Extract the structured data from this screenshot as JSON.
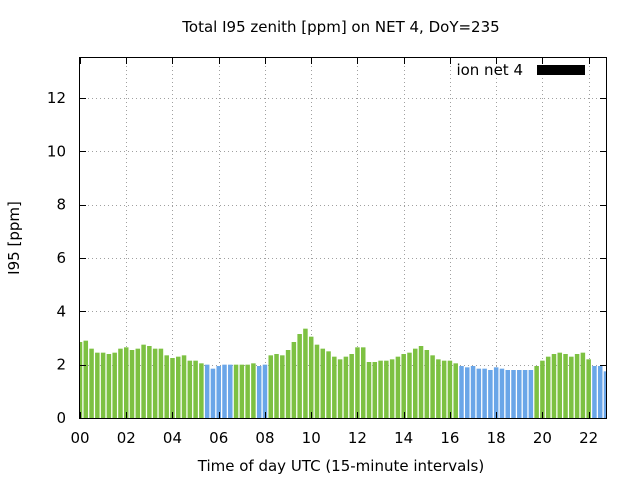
{
  "chart_data": {
    "type": "bar",
    "title": "Total I95 zenith [ppm] on NET 4, DoY=235",
    "xlabel": "Time of day UTC (15-minute intervals)",
    "ylabel": "I95 [ppm]",
    "xlim": [
      0,
      22.75
    ],
    "ylim": [
      0,
      13.5
    ],
    "x_ticks": [
      0,
      2,
      4,
      6,
      8,
      10,
      12,
      14,
      16,
      18,
      20,
      22
    ],
    "x_tick_labels": [
      "00",
      "02",
      "04",
      "06",
      "08",
      "10",
      "12",
      "14",
      "16",
      "18",
      "20",
      "22"
    ],
    "y_ticks": [
      0,
      2,
      4,
      6,
      8,
      10,
      12
    ],
    "y_tick_labels": [
      "0",
      "2",
      "4",
      "6",
      "8",
      "10",
      "12"
    ],
    "grid": true,
    "legend": {
      "label": "ion net 4",
      "color": "#000000",
      "placement": "top-right"
    },
    "colors": {
      "green": "#7dc142",
      "blue": "#6aa6e8"
    },
    "series": [
      {
        "values": [
          {
            "x": 0.0,
            "y": 2.85,
            "color": "green"
          },
          {
            "x": 0.25,
            "y": 2.9,
            "color": "green"
          },
          {
            "x": 0.5,
            "y": 2.6,
            "color": "green"
          },
          {
            "x": 0.75,
            "y": 2.45,
            "color": "green"
          },
          {
            "x": 1.0,
            "y": 2.45,
            "color": "green"
          },
          {
            "x": 1.25,
            "y": 2.4,
            "color": "green"
          },
          {
            "x": 1.5,
            "y": 2.45,
            "color": "green"
          },
          {
            "x": 1.75,
            "y": 2.6,
            "color": "green"
          },
          {
            "x": 2.0,
            "y": 2.65,
            "color": "green"
          },
          {
            "x": 2.25,
            "y": 2.55,
            "color": "green"
          },
          {
            "x": 2.5,
            "y": 2.6,
            "color": "green"
          },
          {
            "x": 2.75,
            "y": 2.75,
            "color": "green"
          },
          {
            "x": 3.0,
            "y": 2.7,
            "color": "green"
          },
          {
            "x": 3.25,
            "y": 2.6,
            "color": "green"
          },
          {
            "x": 3.5,
            "y": 2.6,
            "color": "green"
          },
          {
            "x": 3.75,
            "y": 2.35,
            "color": "green"
          },
          {
            "x": 4.0,
            "y": 2.25,
            "color": "green"
          },
          {
            "x": 4.25,
            "y": 2.3,
            "color": "green"
          },
          {
            "x": 4.5,
            "y": 2.35,
            "color": "green"
          },
          {
            "x": 4.75,
            "y": 2.15,
            "color": "green"
          },
          {
            "x": 5.0,
            "y": 2.15,
            "color": "green"
          },
          {
            "x": 5.25,
            "y": 2.05,
            "color": "green"
          },
          {
            "x": 5.5,
            "y": 2.0,
            "color": "blue"
          },
          {
            "x": 5.75,
            "y": 1.85,
            "color": "blue"
          },
          {
            "x": 6.0,
            "y": 1.95,
            "color": "blue"
          },
          {
            "x": 6.25,
            "y": 2.0,
            "color": "blue"
          },
          {
            "x": 6.5,
            "y": 2.0,
            "color": "blue"
          },
          {
            "x": 6.75,
            "y": 2.0,
            "color": "green"
          },
          {
            "x": 7.0,
            "y": 2.0,
            "color": "green"
          },
          {
            "x": 7.25,
            "y": 2.0,
            "color": "green"
          },
          {
            "x": 7.5,
            "y": 2.05,
            "color": "green"
          },
          {
            "x": 7.75,
            "y": 1.95,
            "color": "blue"
          },
          {
            "x": 8.0,
            "y": 2.0,
            "color": "blue"
          },
          {
            "x": 8.25,
            "y": 2.35,
            "color": "green"
          },
          {
            "x": 8.5,
            "y": 2.4,
            "color": "green"
          },
          {
            "x": 8.75,
            "y": 2.35,
            "color": "green"
          },
          {
            "x": 9.0,
            "y": 2.55,
            "color": "green"
          },
          {
            "x": 9.25,
            "y": 2.85,
            "color": "green"
          },
          {
            "x": 9.5,
            "y": 3.15,
            "color": "green"
          },
          {
            "x": 9.75,
            "y": 3.35,
            "color": "green"
          },
          {
            "x": 10.0,
            "y": 3.05,
            "color": "green"
          },
          {
            "x": 10.25,
            "y": 2.75,
            "color": "green"
          },
          {
            "x": 10.5,
            "y": 2.6,
            "color": "green"
          },
          {
            "x": 10.75,
            "y": 2.5,
            "color": "green"
          },
          {
            "x": 11.0,
            "y": 2.3,
            "color": "green"
          },
          {
            "x": 11.25,
            "y": 2.2,
            "color": "green"
          },
          {
            "x": 11.5,
            "y": 2.3,
            "color": "green"
          },
          {
            "x": 11.75,
            "y": 2.4,
            "color": "green"
          },
          {
            "x": 12.0,
            "y": 2.65,
            "color": "green"
          },
          {
            "x": 12.25,
            "y": 2.65,
            "color": "green"
          },
          {
            "x": 12.5,
            "y": 2.1,
            "color": "green"
          },
          {
            "x": 12.75,
            "y": 2.1,
            "color": "green"
          },
          {
            "x": 13.0,
            "y": 2.15,
            "color": "green"
          },
          {
            "x": 13.25,
            "y": 2.15,
            "color": "green"
          },
          {
            "x": 13.5,
            "y": 2.2,
            "color": "green"
          },
          {
            "x": 13.75,
            "y": 2.3,
            "color": "green"
          },
          {
            "x": 14.0,
            "y": 2.4,
            "color": "green"
          },
          {
            "x": 14.25,
            "y": 2.45,
            "color": "green"
          },
          {
            "x": 14.5,
            "y": 2.6,
            "color": "green"
          },
          {
            "x": 14.75,
            "y": 2.7,
            "color": "green"
          },
          {
            "x": 15.0,
            "y": 2.55,
            "color": "green"
          },
          {
            "x": 15.25,
            "y": 2.35,
            "color": "green"
          },
          {
            "x": 15.5,
            "y": 2.2,
            "color": "green"
          },
          {
            "x": 15.75,
            "y": 2.15,
            "color": "green"
          },
          {
            "x": 16.0,
            "y": 2.15,
            "color": "green"
          },
          {
            "x": 16.25,
            "y": 2.05,
            "color": "green"
          },
          {
            "x": 16.5,
            "y": 1.95,
            "color": "blue"
          },
          {
            "x": 16.75,
            "y": 1.9,
            "color": "blue"
          },
          {
            "x": 17.0,
            "y": 1.95,
            "color": "blue"
          },
          {
            "x": 17.25,
            "y": 1.85,
            "color": "blue"
          },
          {
            "x": 17.5,
            "y": 1.85,
            "color": "blue"
          },
          {
            "x": 17.75,
            "y": 1.8,
            "color": "blue"
          },
          {
            "x": 18.0,
            "y": 1.9,
            "color": "blue"
          },
          {
            "x": 18.25,
            "y": 1.85,
            "color": "blue"
          },
          {
            "x": 18.5,
            "y": 1.8,
            "color": "blue"
          },
          {
            "x": 18.75,
            "y": 1.8,
            "color": "blue"
          },
          {
            "x": 19.0,
            "y": 1.8,
            "color": "blue"
          },
          {
            "x": 19.25,
            "y": 1.8,
            "color": "blue"
          },
          {
            "x": 19.5,
            "y": 1.8,
            "color": "blue"
          },
          {
            "x": 19.75,
            "y": 1.95,
            "color": "green"
          },
          {
            "x": 20.0,
            "y": 2.15,
            "color": "green"
          },
          {
            "x": 20.25,
            "y": 2.3,
            "color": "green"
          },
          {
            "x": 20.5,
            "y": 2.4,
            "color": "green"
          },
          {
            "x": 20.75,
            "y": 2.45,
            "color": "green"
          },
          {
            "x": 21.0,
            "y": 2.4,
            "color": "green"
          },
          {
            "x": 21.25,
            "y": 2.3,
            "color": "green"
          },
          {
            "x": 21.5,
            "y": 2.4,
            "color": "green"
          },
          {
            "x": 21.75,
            "y": 2.45,
            "color": "green"
          },
          {
            "x": 22.0,
            "y": 2.2,
            "color": "green"
          },
          {
            "x": 22.25,
            "y": 1.95,
            "color": "blue"
          },
          {
            "x": 22.5,
            "y": 1.95,
            "color": "blue"
          },
          {
            "x": 22.75,
            "y": 1.75,
            "color": "blue"
          }
        ]
      }
    ]
  }
}
